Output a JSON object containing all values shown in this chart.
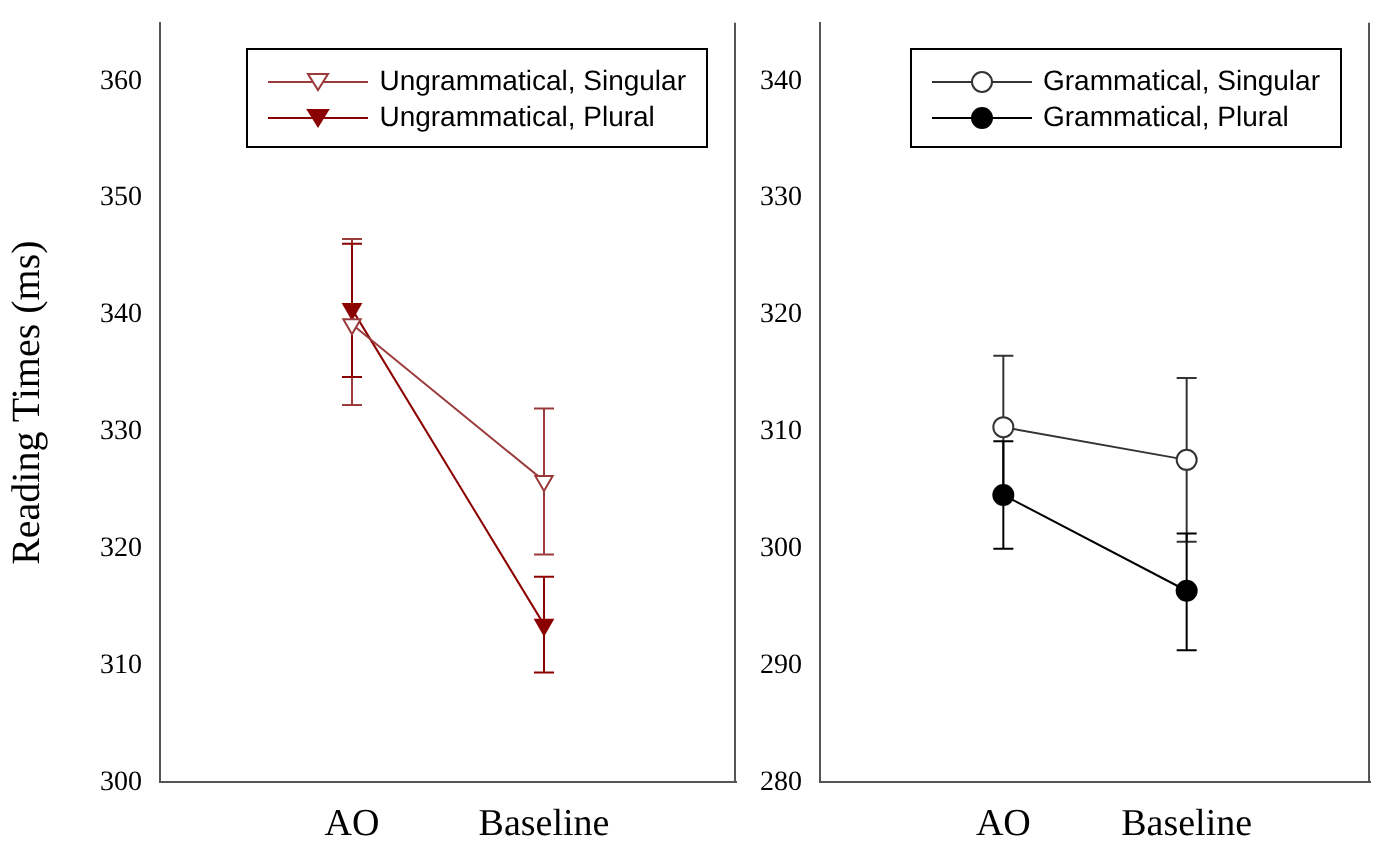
{
  "chart_data": [
    {
      "type": "line",
      "categories": [
        "AO",
        "Baseline"
      ],
      "ylabel": "Reading Times (ms)",
      "ylim": [
        300,
        365
      ],
      "yticks": [
        300,
        310,
        320,
        330,
        340,
        350,
        360
      ],
      "grid": false,
      "legend": "top right",
      "marker": "triangle",
      "series": [
        {
          "name": "Ungrammatical, Singular",
          "color": "#9b3a3a",
          "values": [
            339.2,
            325.8
          ],
          "errors": [
            [
              332.3,
              346.5
            ],
            [
              319.5,
              332.0
            ]
          ]
        },
        {
          "name": "Ungrammatical, Plural",
          "color": "#8b0000",
          "values": [
            340.5,
            313.5
          ],
          "errors": [
            [
              334.7,
              346.1
            ],
            [
              309.4,
              317.6
            ]
          ]
        }
      ]
    },
    {
      "type": "line",
      "categories": [
        "AO",
        "Baseline"
      ],
      "ylim": [
        280,
        345
      ],
      "yticks": [
        280,
        290,
        300,
        310,
        320,
        330,
        340
      ],
      "grid": false,
      "legend": "top right",
      "marker": "circle",
      "series": [
        {
          "name": "Grammatical, Singular",
          "color": "#333333",
          "values": [
            310.4,
            307.6
          ],
          "errors": [
            [
              304.3,
              316.5
            ],
            [
              300.6,
              314.6
            ]
          ]
        },
        {
          "name": "Grammatical, Plural",
          "color": "#000000",
          "values": [
            304.6,
            296.4
          ],
          "errors": [
            [
              300.0,
              309.2
            ],
            [
              291.3,
              301.3
            ]
          ]
        }
      ]
    }
  ]
}
